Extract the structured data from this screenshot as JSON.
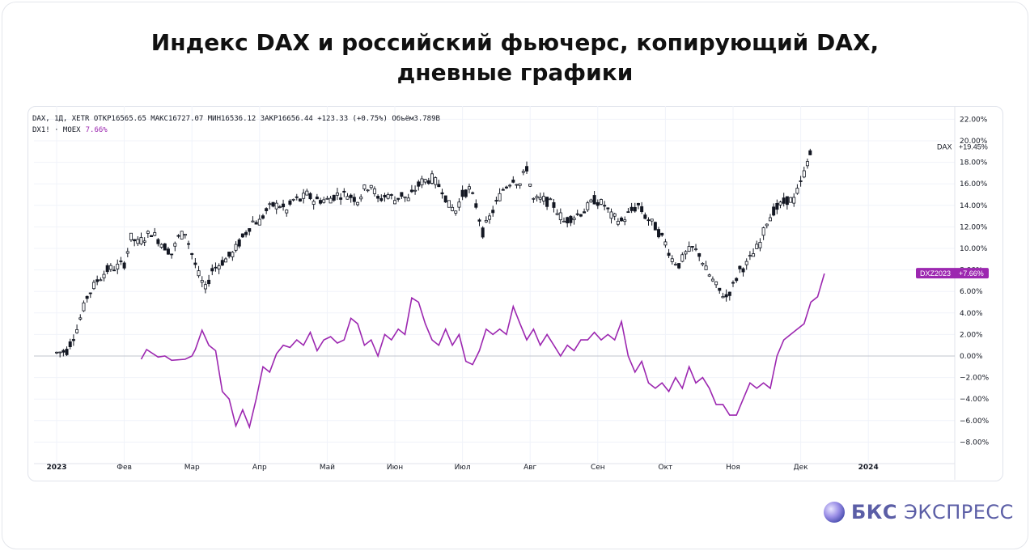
{
  "title_lines": [
    "Индекс DAX и российский фьючерс, копирующий DAX,",
    "дневные графики"
  ],
  "legend": {
    "line1": "DAX, 1Д, XETR  ОТКР16565.65  МАКС16727.07  МИН16536.12  ЗАКР16656.44  +123.33 (+0.75%)  Объём3.789B",
    "line2_prefix": "DX1! · MOEX",
    "line2_value": "7.66%"
  },
  "labels": {
    "dax_name": "DAX",
    "dax_value": "+19.45%",
    "dx_name": "DXZ2023",
    "dx_value": "+7.66%"
  },
  "brand": {
    "bold": "БКС",
    "rest": " ЭКСПРЕСС"
  },
  "colors": {
    "dax": "#131722",
    "dx": "#9c27b0",
    "badge": "#9c27b0",
    "brand": "#5b5ea6"
  },
  "chart_data": {
    "type": "line",
    "y_unit": "%",
    "ylim": [
      -9.5,
      22.7
    ],
    "y_ticks": [
      22,
      20,
      18,
      16,
      14,
      12,
      10,
      8,
      6,
      4,
      2,
      0,
      -2,
      -4,
      -6,
      -8
    ],
    "y_tick_labels": [
      "22.00%",
      "20.00%",
      "18.00%",
      "16.00%",
      "14.00%",
      "12.00%",
      "10.00%",
      "8.00%",
      "6.00%",
      "4.00%",
      "2.00%",
      "0.00%",
      "−2.00%",
      "−4.00%",
      "−6.00%",
      "−8.00%"
    ],
    "x_labels": [
      {
        "t": 0.0,
        "label": "2023",
        "bold": true
      },
      {
        "t": 1.0,
        "label": "Фев"
      },
      {
        "t": 2.0,
        "label": "Мар"
      },
      {
        "t": 3.0,
        "label": "Апр"
      },
      {
        "t": 4.0,
        "label": "Май"
      },
      {
        "t": 5.0,
        "label": "Июн"
      },
      {
        "t": 6.0,
        "label": "Июл"
      },
      {
        "t": 7.0,
        "label": "Авг"
      },
      {
        "t": 8.0,
        "label": "Сен"
      },
      {
        "t": 9.0,
        "label": "Окт"
      },
      {
        "t": 10.0,
        "label": "Ноя"
      },
      {
        "t": 11.0,
        "label": "Дек"
      },
      {
        "t": 12.0,
        "label": "2024",
        "bold": true
      }
    ],
    "x_range": [
      -0.3,
      12.8
    ],
    "series": [
      {
        "name": "DAX",
        "style": "candles",
        "points": [
          [
            0,
            0.3
          ],
          [
            0.15,
            0.5
          ],
          [
            0.3,
            2.5
          ],
          [
            0.45,
            5.5
          ],
          [
            0.6,
            7.0
          ],
          [
            0.75,
            8.0
          ],
          [
            0.9,
            8.3
          ],
          [
            1.0,
            8.6
          ],
          [
            1.1,
            11
          ],
          [
            1.2,
            10.5
          ],
          [
            1.3,
            11.0
          ],
          [
            1.4,
            11.5
          ],
          [
            1.55,
            10.5
          ],
          [
            1.7,
            9.5
          ],
          [
            1.8,
            11.0
          ],
          [
            1.9,
            11.5
          ],
          [
            2.0,
            9.5
          ],
          [
            2.1,
            7.5
          ],
          [
            2.2,
            6.2
          ],
          [
            2.3,
            8.0
          ],
          [
            2.4,
            8.5
          ],
          [
            2.5,
            9.0
          ],
          [
            2.6,
            9.5
          ],
          [
            2.7,
            10.5
          ],
          [
            2.8,
            11.5
          ],
          [
            2.9,
            12.5
          ],
          [
            3.0,
            12.5
          ],
          [
            3.1,
            13.5
          ],
          [
            3.2,
            14.0
          ],
          [
            3.3,
            14.0
          ],
          [
            3.4,
            13.5
          ],
          [
            3.5,
            14.5
          ],
          [
            3.6,
            14.5
          ],
          [
            3.7,
            15.0
          ],
          [
            3.8,
            14.5
          ],
          [
            4.0,
            14.5
          ],
          [
            4.15,
            15.0
          ],
          [
            4.3,
            15.0
          ],
          [
            4.45,
            14.5
          ],
          [
            4.55,
            15.5
          ],
          [
            4.65,
            16.0
          ],
          [
            4.75,
            14.5
          ],
          [
            4.9,
            15.0
          ],
          [
            5.0,
            14.5
          ],
          [
            5.1,
            15.0
          ],
          [
            5.2,
            14.5
          ],
          [
            5.3,
            15.5
          ],
          [
            5.4,
            16.2
          ],
          [
            5.55,
            16.5
          ],
          [
            5.7,
            15.5
          ],
          [
            5.8,
            14.0
          ],
          [
            5.9,
            13.5
          ],
          [
            6.0,
            15.0
          ],
          [
            6.1,
            15.5
          ],
          [
            6.2,
            14.0
          ],
          [
            6.3,
            11.5
          ],
          [
            6.45,
            13.5
          ],
          [
            6.6,
            15.5
          ],
          [
            6.75,
            16.5
          ],
          [
            6.85,
            16.0
          ],
          [
            6.95,
            17.5
          ],
          [
            7.05,
            14.5
          ],
          [
            7.2,
            14.5
          ],
          [
            7.35,
            14.0
          ],
          [
            7.5,
            12.5
          ],
          [
            7.65,
            13.0
          ],
          [
            7.8,
            13.5
          ],
          [
            7.95,
            14.5
          ],
          [
            8.1,
            14.0
          ],
          [
            8.2,
            13.0
          ],
          [
            8.35,
            12.5
          ],
          [
            8.5,
            13.5
          ],
          [
            8.6,
            14.0
          ],
          [
            8.7,
            13.0
          ],
          [
            8.85,
            12.0
          ],
          [
            9.0,
            10.5
          ],
          [
            9.1,
            9.0
          ],
          [
            9.2,
            8.5
          ],
          [
            9.3,
            9.5
          ],
          [
            9.4,
            10.0
          ],
          [
            9.5,
            9.5
          ],
          [
            9.6,
            8.0
          ],
          [
            9.7,
            7.0
          ],
          [
            9.8,
            6.0
          ],
          [
            9.9,
            5.5
          ],
          [
            10.0,
            6.5
          ],
          [
            10.1,
            8.0
          ],
          [
            10.2,
            8.5
          ],
          [
            10.3,
            9.5
          ],
          [
            10.4,
            10.5
          ],
          [
            10.5,
            12.5
          ],
          [
            10.6,
            13.5
          ],
          [
            10.7,
            14.0
          ],
          [
            10.8,
            14.5
          ],
          [
            10.9,
            14.5
          ],
          [
            11.0,
            16.0
          ],
          [
            11.1,
            18.0
          ],
          [
            11.18,
            19.45
          ]
        ]
      },
      {
        "name": "DXZ2023",
        "style": "line",
        "points": [
          [
            1.25,
            -0.3
          ],
          [
            1.33,
            0.6
          ],
          [
            1.5,
            -0.1
          ],
          [
            1.6,
            0
          ],
          [
            1.7,
            -0.4
          ],
          [
            1.9,
            -0.3
          ],
          [
            2.0,
            0.0
          ],
          [
            2.05,
            0.6
          ],
          [
            2.15,
            2.4
          ],
          [
            2.25,
            1.0
          ],
          [
            2.35,
            0.5
          ],
          [
            2.45,
            -3.3
          ],
          [
            2.55,
            -4.0
          ],
          [
            2.65,
            -6.5
          ],
          [
            2.75,
            -5.0
          ],
          [
            2.85,
            -6.6
          ],
          [
            2.95,
            -4.0
          ],
          [
            3.05,
            -1.0
          ],
          [
            3.15,
            -1.5
          ],
          [
            3.25,
            0.2
          ],
          [
            3.35,
            1.0
          ],
          [
            3.45,
            0.8
          ],
          [
            3.55,
            1.5
          ],
          [
            3.65,
            1.0
          ],
          [
            3.75,
            2.2
          ],
          [
            3.85,
            0.5
          ],
          [
            3.95,
            1.5
          ],
          [
            4.05,
            1.8
          ],
          [
            4.15,
            1.2
          ],
          [
            4.25,
            1.5
          ],
          [
            4.35,
            3.5
          ],
          [
            4.45,
            3.0
          ],
          [
            4.55,
            1.0
          ],
          [
            4.65,
            1.5
          ],
          [
            4.75,
            0.0
          ],
          [
            4.85,
            2.0
          ],
          [
            4.95,
            1.5
          ],
          [
            5.05,
            2.5
          ],
          [
            5.15,
            2.0
          ],
          [
            5.25,
            5.4
          ],
          [
            5.35,
            5.0
          ],
          [
            5.45,
            3.0
          ],
          [
            5.55,
            1.5
          ],
          [
            5.65,
            1.0
          ],
          [
            5.75,
            2.5
          ],
          [
            5.85,
            1.0
          ],
          [
            5.95,
            2.0
          ],
          [
            6.05,
            -0.5
          ],
          [
            6.15,
            -0.8
          ],
          [
            6.25,
            0.5
          ],
          [
            6.35,
            2.5
          ],
          [
            6.45,
            2.0
          ],
          [
            6.55,
            2.5
          ],
          [
            6.65,
            2.0
          ],
          [
            6.75,
            4.6
          ],
          [
            6.85,
            3.0
          ],
          [
            6.95,
            1.5
          ],
          [
            7.05,
            2.5
          ],
          [
            7.15,
            1.0
          ],
          [
            7.25,
            2.0
          ],
          [
            7.35,
            1.0
          ],
          [
            7.45,
            0.0
          ],
          [
            7.55,
            1.0
          ],
          [
            7.65,
            0.5
          ],
          [
            7.75,
            1.5
          ],
          [
            7.85,
            1.5
          ],
          [
            7.95,
            2.2
          ],
          [
            8.05,
            1.5
          ],
          [
            8.15,
            2.0
          ],
          [
            8.25,
            1.5
          ],
          [
            8.35,
            3.2
          ],
          [
            8.45,
            0.0
          ],
          [
            8.55,
            -1.5
          ],
          [
            8.65,
            -0.5
          ],
          [
            8.75,
            -2.5
          ],
          [
            8.85,
            -3.0
          ],
          [
            8.95,
            -2.5
          ],
          [
            9.05,
            -3.3
          ],
          [
            9.15,
            -2.0
          ],
          [
            9.25,
            -3.0
          ],
          [
            9.35,
            -1.0
          ],
          [
            9.45,
            -2.5
          ],
          [
            9.55,
            -2.0
          ],
          [
            9.65,
            -3.0
          ],
          [
            9.75,
            -4.5
          ],
          [
            9.85,
            -4.5
          ],
          [
            9.95,
            -5.5
          ],
          [
            10.05,
            -5.5
          ],
          [
            10.15,
            -4.0
          ],
          [
            10.25,
            -2.5
          ],
          [
            10.35,
            -3.0
          ],
          [
            10.45,
            -2.5
          ],
          [
            10.55,
            -3.0
          ],
          [
            10.65,
            0.0
          ],
          [
            10.75,
            1.5
          ],
          [
            10.85,
            2.0
          ],
          [
            10.95,
            2.5
          ],
          [
            11.05,
            3.0
          ],
          [
            11.15,
            5.0
          ],
          [
            11.25,
            5.5
          ],
          [
            11.35,
            7.66
          ]
        ]
      }
    ]
  }
}
